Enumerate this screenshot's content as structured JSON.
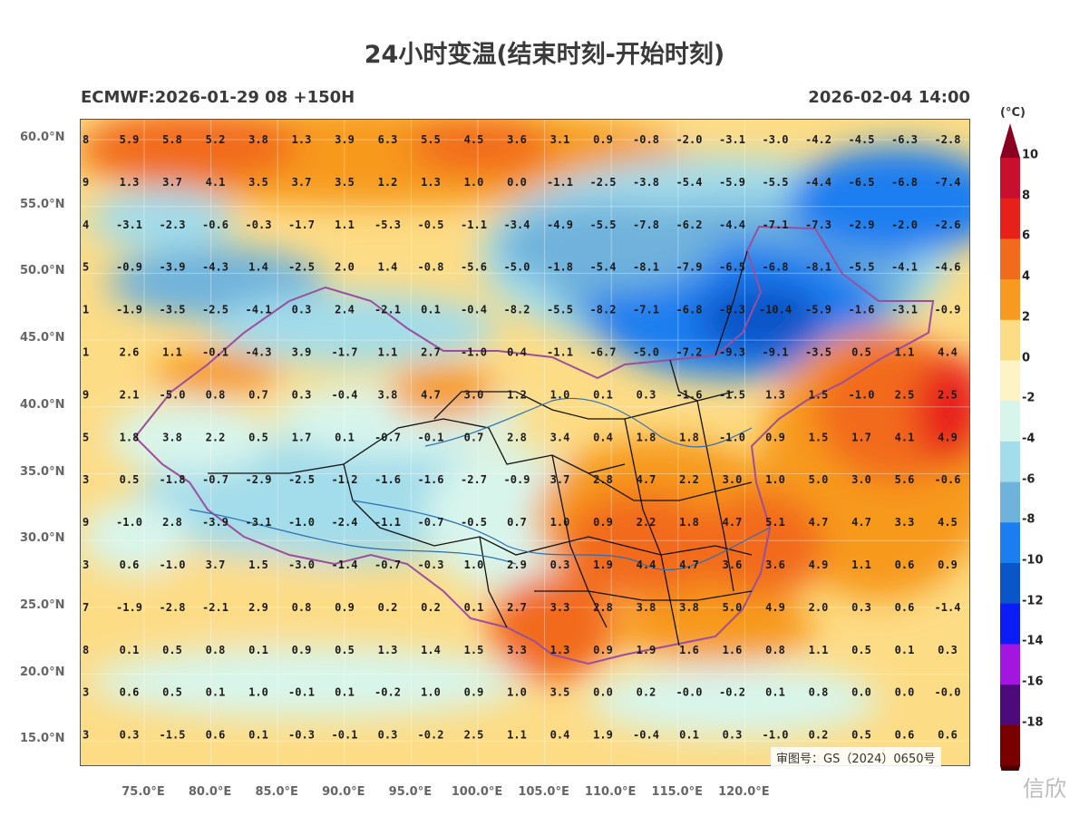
{
  "title": "24小时变温(结束时刻-开始时刻)",
  "model_info": "ECMWF:2026-01-29 08 +150H",
  "valid_time": "2026-02-04 14:00",
  "approval_number": "审图号：GS（2024）0650号",
  "watermark": "信欣",
  "colorbar": {
    "unit": "(°C)",
    "labels": [
      "10",
      "8",
      "6",
      "4",
      "2",
      "0",
      "-2",
      "-4",
      "-6",
      "-8",
      "-10",
      "-12",
      "-14",
      "-16",
      "-18"
    ],
    "colors": [
      "#8b0020",
      "#c8102e",
      "#e8201a",
      "#f26a1b",
      "#f79a1f",
      "#fddc86",
      "#fdf3c5",
      "#d8f5ec",
      "#a3dcea",
      "#6fb2dc",
      "#1b7ef0",
      "#0a55c8",
      "#0b1cf7",
      "#a316e0",
      "#4d0a7a",
      "#7a0000",
      "#4a0000"
    ]
  },
  "y_ticks": [
    "60.0°N",
    "55.0°N",
    "50.0°N",
    "45.0°N",
    "40.0°N",
    "35.0°N",
    "30.0°N",
    "25.0°N",
    "20.0°N",
    "15.0°N"
  ],
  "x_ticks": [
    "75.0°E",
    "80.0°E",
    "85.0°E",
    "90.0°E",
    "95.0°E",
    "100.0°E",
    "105.0°E",
    "110.0°E",
    "115.0°E",
    "120.0°E"
  ],
  "value_rows": [
    [
      "8",
      "5.9",
      "5.8",
      "5.2",
      "3.8",
      "1.3",
      "3.9",
      "6.3",
      "5.5",
      "4.5",
      "3.6",
      "3.1",
      "0.9",
      "-0.8",
      "-2.0",
      "-3.1",
      "-3.0",
      "-4.2",
      "-4.5",
      "-6.3",
      "-2.8"
    ],
    [
      "9",
      "1.3",
      "3.7",
      "4.1",
      "3.5",
      "3.7",
      "3.5",
      "1.2",
      "1.3",
      "1.0",
      "0.0",
      "-1.1",
      "-2.5",
      "-3.8",
      "-5.4",
      "-5.9",
      "-5.5",
      "-4.4",
      "-6.5",
      "-6.8",
      "-7.4"
    ],
    [
      "4",
      "-3.1",
      "-2.3",
      "-0.6",
      "-0.3",
      "-1.7",
      "1.1",
      "-5.3",
      "-0.5",
      "-1.1",
      "-3.4",
      "-4.9",
      "-5.5",
      "-7.8",
      "-6.2",
      "-4.4",
      "-7.1",
      "-7.3",
      "-2.9",
      "-2.0",
      "-2.6"
    ],
    [
      "5",
      "-0.9",
      "-3.9",
      "-4.3",
      "1.4",
      "-2.5",
      "2.0",
      "1.4",
      "-0.8",
      "-5.6",
      "-5.0",
      "-1.8",
      "-5.4",
      "-8.1",
      "-7.9",
      "-6.5",
      "-6.8",
      "-8.1",
      "-5.5",
      "-4.1",
      "-4.6"
    ],
    [
      "1",
      "-1.9",
      "-3.5",
      "-2.5",
      "-4.1",
      "0.3",
      "2.4",
      "-2.1",
      "0.1",
      "-0.4",
      "-8.2",
      "-5.5",
      "-8.2",
      "-7.1",
      "-6.8",
      "-8.3",
      "-10.4",
      "-5.9",
      "-1.6",
      "-3.1",
      "-0.9"
    ],
    [
      "1",
      "2.6",
      "1.1",
      "-0.1",
      "-4.3",
      "3.9",
      "-1.7",
      "1.1",
      "2.7",
      "-1.0",
      "0.4",
      "-1.1",
      "-6.7",
      "-5.0",
      "-7.2",
      "-9.3",
      "-9.1",
      "-3.5",
      "0.5",
      "1.1",
      "4.4"
    ],
    [
      "9",
      "2.1",
      "-5.0",
      "0.8",
      "0.7",
      "0.3",
      "-0.4",
      "3.8",
      "4.7",
      "3.0",
      "1.2",
      "1.0",
      "0.1",
      "0.3",
      "-1.6",
      "-1.5",
      "1.3",
      "1.5",
      "-1.0",
      "2.5",
      "2.5"
    ],
    [
      "5",
      "1.8",
      "3.8",
      "2.2",
      "0.5",
      "1.7",
      "0.1",
      "-0.7",
      "-0.1",
      "0.7",
      "2.8",
      "3.4",
      "0.4",
      "1.8",
      "1.8",
      "-1.0",
      "0.9",
      "1.5",
      "1.7",
      "4.1",
      "4.9"
    ],
    [
      "3",
      "0.5",
      "-1.8",
      "-0.7",
      "-2.9",
      "-2.5",
      "-1.2",
      "-1.6",
      "-1.6",
      "-2.7",
      "-0.9",
      "3.7",
      "2.8",
      "4.7",
      "2.2",
      "3.0",
      "1.0",
      "5.0",
      "3.0",
      "5.6",
      "-0.6"
    ],
    [
      "9",
      "-1.0",
      "2.8",
      "-3.9",
      "-3.1",
      "-1.0",
      "-2.4",
      "-1.1",
      "-0.7",
      "-0.5",
      "0.7",
      "1.0",
      "0.9",
      "2.2",
      "1.8",
      "4.7",
      "5.1",
      "4.7",
      "4.7",
      "3.3",
      "4.5"
    ],
    [
      "3",
      "0.6",
      "-1.0",
      "3.7",
      "1.5",
      "-3.0",
      "-1.4",
      "-0.7",
      "-0.3",
      "1.0",
      "2.9",
      "0.3",
      "1.9",
      "4.4",
      "4.7",
      "3.6",
      "3.6",
      "4.9",
      "1.1",
      "0.6",
      "0.9"
    ],
    [
      "7",
      "-1.9",
      "-2.8",
      "-2.1",
      "2.9",
      "0.8",
      "0.9",
      "0.2",
      "0.2",
      "0.1",
      "2.7",
      "3.3",
      "2.8",
      "3.8",
      "3.8",
      "5.0",
      "4.9",
      "2.0",
      "0.3",
      "0.6",
      "-1.4"
    ],
    [
      "8",
      "0.1",
      "0.5",
      "0.8",
      "0.1",
      "0.9",
      "0.5",
      "1.3",
      "1.4",
      "1.5",
      "3.3",
      "1.3",
      "0.9",
      "1.9",
      "1.6",
      "1.6",
      "0.8",
      "1.1",
      "0.5",
      "0.1",
      "0.3"
    ],
    [
      "3",
      "0.6",
      "0.5",
      "0.1",
      "1.0",
      "-0.1",
      "0.1",
      "-0.2",
      "1.0",
      "0.9",
      "1.0",
      "3.5",
      "0.0",
      "0.2",
      "-0.0",
      "-0.2",
      "0.1",
      "0.8",
      "0.0",
      "0.0",
      "-0.0"
    ],
    [
      "3",
      "0.3",
      "-1.5",
      "0.6",
      "0.1",
      "-0.3",
      "-0.1",
      "0.3",
      "-0.2",
      "2.5",
      "1.1",
      "0.4",
      "1.9",
      "-0.4",
      "0.1",
      "0.3",
      "-1.0",
      "0.2",
      "0.5",
      "0.6",
      "0.6"
    ]
  ]
}
